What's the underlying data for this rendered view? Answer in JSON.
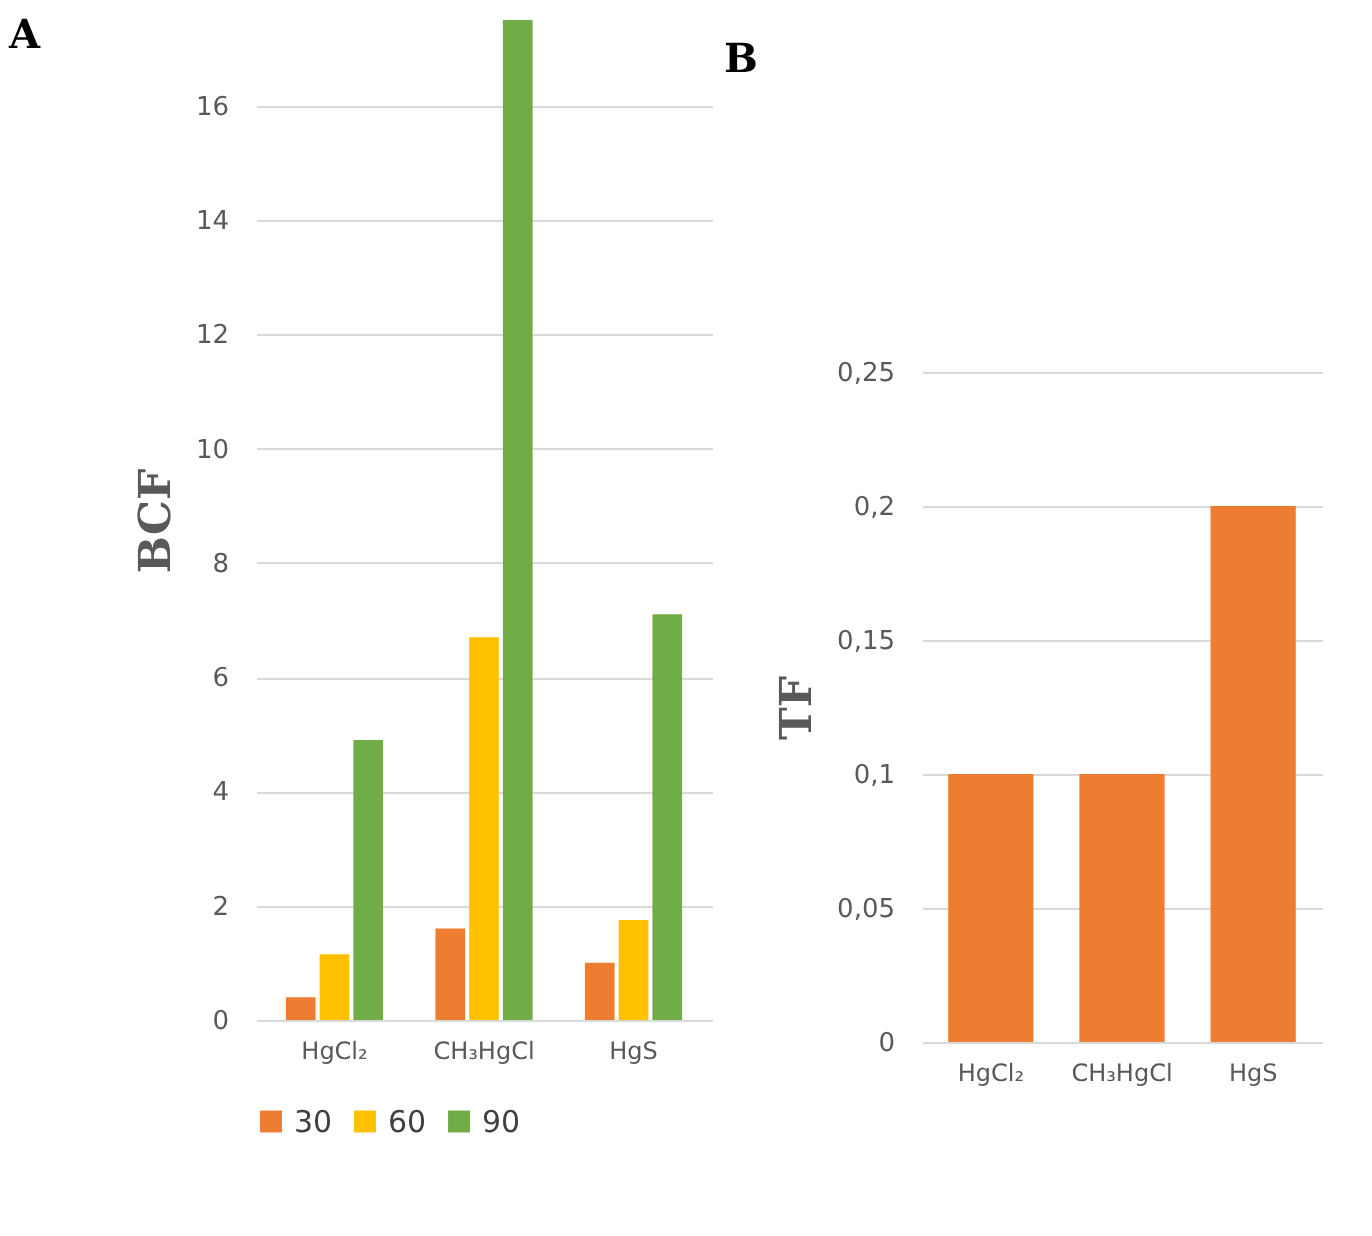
{
  "chart_data": [
    {
      "type": "bar",
      "title": "A",
      "ylabel": "BCF",
      "categories": [
        "HgCl₂",
        "CH₃HgCl",
        "HgS"
      ],
      "series": [
        {
          "name": "30",
          "color": "#ed7d31",
          "values": [
            0.4,
            1.6,
            1.0
          ]
        },
        {
          "name": "60",
          "color": "#ffc000",
          "values": [
            1.15,
            6.7,
            1.75
          ]
        },
        {
          "name": "90",
          "color": "#70ad47",
          "values": [
            4.9,
            17.5,
            7.1
          ]
        }
      ],
      "ylim": [
        0,
        17.5
      ],
      "yticks": [
        0,
        2,
        4,
        6,
        8,
        10,
        12,
        14,
        16
      ],
      "grid": "y",
      "legend": "bottom"
    },
    {
      "type": "bar",
      "title": "B",
      "ylabel": "TF",
      "categories": [
        "HgCl₂",
        "CH₃HgCl",
        "HgS"
      ],
      "series": [
        {
          "color": "#ed7d31",
          "values": [
            0.1,
            0.1,
            0.2
          ]
        }
      ],
      "ylim": [
        0,
        0.25
      ],
      "yticks": [
        0,
        {
          "value": 0.05,
          "label": "0,05"
        },
        {
          "value": 0.1,
          "label": "0,1"
        },
        {
          "value": 0.15,
          "label": "0,15"
        },
        {
          "value": 0.2,
          "label": "0,2"
        },
        {
          "value": 0.25,
          "label": "0,25"
        }
      ],
      "grid": "y"
    }
  ]
}
